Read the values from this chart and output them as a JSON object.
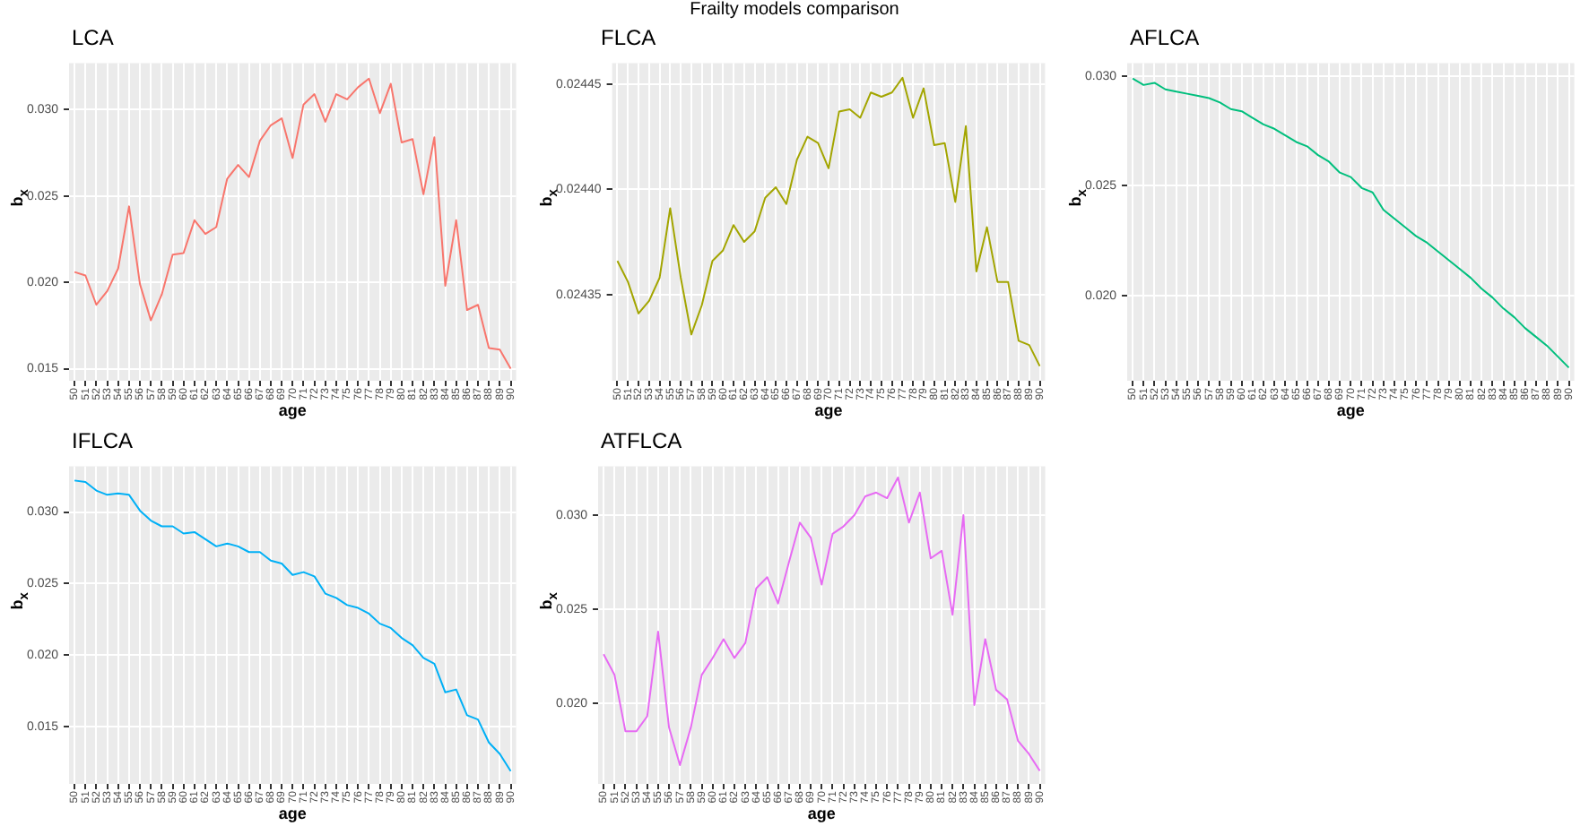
{
  "chart_data": [
    {
      "type": "line",
      "title": "LCA",
      "xlabel": "age",
      "ylabel": "b$_{x}$",
      "annotations": [
        "Frailty models comparison"
      ],
      "color": "#f8766d",
      "grid": true,
      "categories": [
        "50",
        "51",
        "52",
        "53",
        "54",
        "55",
        "56",
        "57",
        "58",
        "59",
        "60",
        "61",
        "62",
        "63",
        "64",
        "65",
        "66",
        "67",
        "68",
        "69",
        "70",
        "71",
        "72",
        "73",
        "74",
        "75",
        "76",
        "77",
        "78",
        "79",
        "80",
        "81",
        "82",
        "83",
        "84",
        "85",
        "86",
        "87",
        "88",
        "89",
        "90"
      ],
      "values": [
        0.0206,
        0.0204,
        0.0187,
        0.0195,
        0.0208,
        0.0244,
        0.0199,
        0.0178,
        0.0193,
        0.0216,
        0.0217,
        0.0236,
        0.0228,
        0.0232,
        0.026,
        0.0268,
        0.0261,
        0.0282,
        0.0291,
        0.0295,
        0.0272,
        0.0303,
        0.0309,
        0.0293,
        0.0309,
        0.0306,
        0.0313,
        0.0318,
        0.0298,
        0.0315,
        0.0281,
        0.0283,
        0.0251,
        0.0284,
        0.0198,
        0.0236,
        0.0184,
        0.0187,
        0.0162,
        0.0161,
        0.015
      ],
      "ylim": [
        0.0143,
        0.0327
      ],
      "yticks": [
        0.015,
        {
          "value": 0.02,
          "label": "0.020"
        },
        0.025,
        {
          "value": 0.03,
          "label": "0.030"
        }
      ]
    },
    {
      "type": "line",
      "title": "FLCA",
      "xlabel": "age",
      "ylabel": "b$_{x}$",
      "color": "#a3a500",
      "grid": true,
      "categories": [
        "50",
        "51",
        "52",
        "53",
        "54",
        "55",
        "56",
        "57",
        "58",
        "59",
        "60",
        "61",
        "62",
        "63",
        "64",
        "65",
        "66",
        "67",
        "68",
        "69",
        "70",
        "71",
        "72",
        "73",
        "74",
        "75",
        "76",
        "77",
        "78",
        "79",
        "80",
        "81",
        "82",
        "83",
        "84",
        "85",
        "86",
        "87",
        "88",
        "89",
        "90"
      ],
      "values": [
        0.024366,
        0.024356,
        0.024341,
        0.024347,
        0.024358,
        0.024391,
        0.024358,
        0.024331,
        0.024345,
        0.024366,
        0.024371,
        0.024383,
        0.024375,
        0.02438,
        0.024396,
        0.024401,
        0.024393,
        0.024414,
        0.024425,
        0.024422,
        0.02441,
        0.024437,
        0.024438,
        0.024434,
        0.024446,
        0.024444,
        0.024446,
        0.024453,
        0.024434,
        0.024448,
        0.024421,
        0.024422,
        0.024394,
        0.02443,
        0.024361,
        0.024382,
        0.024356,
        0.024356,
        0.024328,
        0.024326,
        0.024316
      ],
      "ylim": [
        0.024309,
        0.02446
      ],
      "yticks": [
        0.02435,
        {
          "value": 0.0244,
          "label": "0.02440"
        },
        0.02445
      ]
    },
    {
      "type": "line",
      "title": "AFLCA",
      "xlabel": "age",
      "ylabel": "b$_{x}$",
      "color": "#00bf7d",
      "grid": true,
      "categories": [
        "50",
        "51",
        "52",
        "53",
        "54",
        "55",
        "56",
        "57",
        "58",
        "59",
        "60",
        "61",
        "62",
        "63",
        "64",
        "65",
        "66",
        "67",
        "68",
        "69",
        "70",
        "71",
        "72",
        "73",
        "74",
        "75",
        "76",
        "77",
        "78",
        "79",
        "80",
        "81",
        "82",
        "83",
        "84",
        "85",
        "86",
        "87",
        "88",
        "89",
        "90"
      ],
      "values": [
        0.0299,
        0.0296,
        0.0297,
        0.0294,
        0.0293,
        0.0292,
        0.0291,
        0.029,
        0.0288,
        0.0285,
        0.0284,
        0.0281,
        0.0278,
        0.0276,
        0.0273,
        0.027,
        0.0268,
        0.0264,
        0.0261,
        0.0256,
        0.0254,
        0.0249,
        0.0247,
        0.0239,
        0.0235,
        0.0231,
        0.0227,
        0.0224,
        0.022,
        0.0216,
        0.0212,
        0.0208,
        0.0203,
        0.0199,
        0.0194,
        0.019,
        0.0185,
        0.0181,
        0.0177,
        0.0172,
        0.0167
      ],
      "ylim": [
        0.0161,
        0.0306
      ],
      "yticks": [
        {
          "value": 0.02,
          "label": "0.020"
        },
        0.025,
        {
          "value": 0.03,
          "label": "0.030"
        }
      ]
    },
    {
      "type": "line",
      "title": "IFLCA",
      "xlabel": "age",
      "ylabel": "b$_{x}$",
      "color": "#00b0f6",
      "grid": true,
      "categories": [
        "50",
        "51",
        "52",
        "53",
        "54",
        "55",
        "56",
        "57",
        "58",
        "59",
        "60",
        "61",
        "62",
        "63",
        "64",
        "65",
        "66",
        "67",
        "68",
        "69",
        "70",
        "71",
        "72",
        "73",
        "74",
        "75",
        "76",
        "77",
        "78",
        "79",
        "80",
        "81",
        "82",
        "83",
        "84",
        "85",
        "86",
        "87",
        "88",
        "89",
        "90"
      ],
      "values": [
        0.0322,
        0.0321,
        0.0315,
        0.0312,
        0.0313,
        0.0312,
        0.0301,
        0.0294,
        0.029,
        0.029,
        0.0285,
        0.0286,
        0.0281,
        0.0276,
        0.0278,
        0.0276,
        0.0272,
        0.0272,
        0.0266,
        0.0264,
        0.0256,
        0.0258,
        0.0255,
        0.0243,
        0.024,
        0.0235,
        0.0233,
        0.0229,
        0.0222,
        0.0219,
        0.0212,
        0.0207,
        0.0198,
        0.0194,
        0.0174,
        0.0176,
        0.0158,
        0.0155,
        0.0139,
        0.0131,
        0.0119
      ],
      "ylim": [
        0.011,
        0.0332
      ],
      "yticks": [
        0.015,
        {
          "value": 0.02,
          "label": "0.020"
        },
        0.025,
        {
          "value": 0.03,
          "label": "0.030"
        }
      ]
    },
    {
      "type": "line",
      "title": "ATFLCA",
      "xlabel": "age",
      "ylabel": "b$_{x}$",
      "color": "#e76bf3",
      "grid": true,
      "categories": [
        "50",
        "51",
        "52",
        "53",
        "54",
        "55",
        "56",
        "57",
        "58",
        "59",
        "60",
        "61",
        "62",
        "63",
        "64",
        "65",
        "66",
        "67",
        "68",
        "69",
        "70",
        "71",
        "72",
        "73",
        "74",
        "75",
        "76",
        "77",
        "78",
        "79",
        "80",
        "81",
        "82",
        "83",
        "84",
        "85",
        "86",
        "87",
        "88",
        "89",
        "90"
      ],
      "values": [
        0.0226,
        0.0215,
        0.0185,
        0.0185,
        0.0193,
        0.0238,
        0.0187,
        0.0167,
        0.0187,
        0.0215,
        0.0224,
        0.0234,
        0.0224,
        0.0232,
        0.0261,
        0.0267,
        0.0253,
        0.0275,
        0.0296,
        0.0288,
        0.0263,
        0.029,
        0.0294,
        0.03,
        0.031,
        0.0312,
        0.0309,
        0.032,
        0.0296,
        0.0312,
        0.0277,
        0.0281,
        0.0247,
        0.03,
        0.0199,
        0.0234,
        0.0207,
        0.0202,
        0.018,
        0.0173,
        0.0164
      ],
      "ylim": [
        0.0157,
        0.0326
      ],
      "yticks": [
        {
          "value": 0.02,
          "label": "0.020"
        },
        0.025,
        {
          "value": 0.03,
          "label": "0.030"
        }
      ]
    }
  ]
}
